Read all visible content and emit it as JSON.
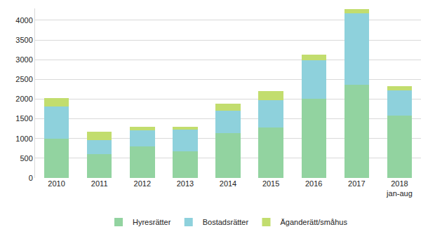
{
  "chart_data": {
    "type": "bar",
    "stacked": true,
    "categories": [
      "2010",
      "2011",
      "2012",
      "2013",
      "2014",
      "2015",
      "2016",
      "2017",
      "2018 jan-aug"
    ],
    "series": [
      {
        "name": "Hyresrätter",
        "color": "#92d3a0",
        "values": [
          1000,
          600,
          800,
          680,
          1130,
          1280,
          2000,
          2360,
          1590
        ]
      },
      {
        "name": "Bostadsrätter",
        "color": "#8ed1dc",
        "values": [
          820,
          360,
          400,
          540,
          570,
          700,
          990,
          1810,
          640
        ]
      },
      {
        "name": "Äganderätt/småhus",
        "color": "#c2dd6e",
        "values": [
          200,
          220,
          100,
          80,
          190,
          220,
          140,
          110,
          100
        ]
      }
    ],
    "ylim": [
      0,
      4300
    ],
    "yticks": [
      0,
      500,
      1000,
      1500,
      2000,
      2500,
      3000,
      3500,
      4000
    ],
    "grid": true,
    "legend": "bottom"
  }
}
